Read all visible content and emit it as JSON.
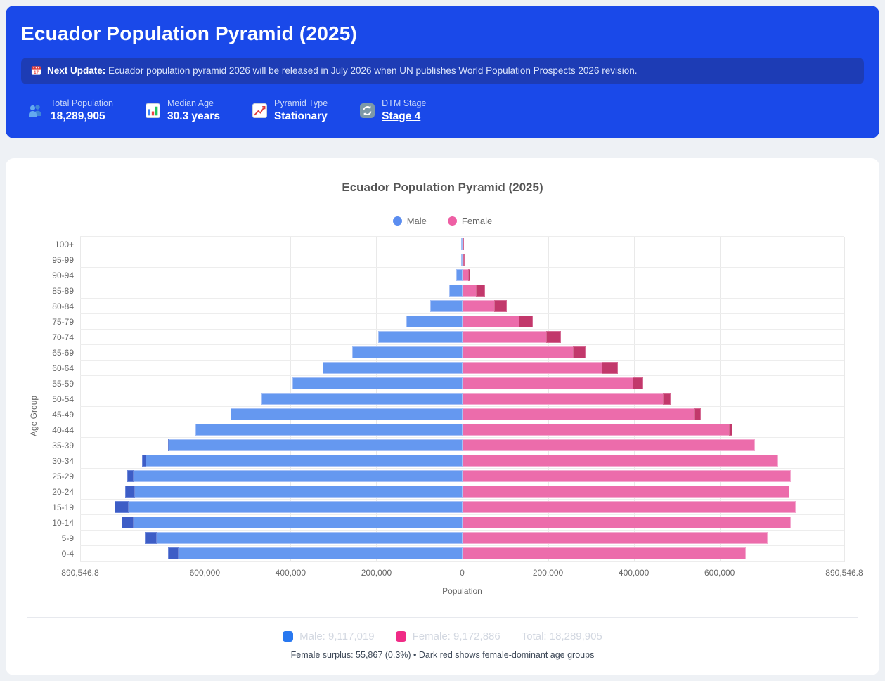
{
  "header": {
    "title": "Ecuador Population Pyramid (2025)",
    "banner": {
      "icon": "calendar-icon",
      "label": "Next Update:",
      "text": "Ecuador population pyramid 2026 will be released in July 2026 when UN publishes World Population Prospects 2026 revision."
    },
    "stats": [
      {
        "icon": "people-icon",
        "label": "Total Population",
        "value": "18,289,905"
      },
      {
        "icon": "bar-chart-icon",
        "label": "Median Age",
        "value": "30.3 years"
      },
      {
        "icon": "chart-increasing-icon",
        "label": "Pyramid Type",
        "value": "Stationary"
      },
      {
        "icon": "arrows-cycle-icon",
        "label": "DTM Stage",
        "value": "Stage 4"
      }
    ]
  },
  "chart": {
    "title": "Ecuador Population Pyramid (2025)",
    "legend": [
      {
        "label": "Male",
        "color": "#5b8df0"
      },
      {
        "label": "Female",
        "color": "#ee5fa4"
      }
    ],
    "ylabel": "Age Group",
    "xlabel": "Population"
  },
  "chart_data": {
    "type": "bar",
    "orientation": "horizontal population pyramid, male left / female right",
    "age_groups": [
      "100+",
      "95-99",
      "90-94",
      "85-89",
      "80-84",
      "75-79",
      "70-74",
      "65-69",
      "60-64",
      "55-59",
      "50-54",
      "45-49",
      "40-44",
      "35-39",
      "30-34",
      "25-29",
      "20-24",
      "15-19",
      "10-14",
      "5-9",
      "0-4"
    ],
    "series": [
      {
        "name": "Male",
        "values": [
          800,
          2700,
          13500,
          30100,
          74200,
          131000,
          195700,
          257000,
          324700,
          396500,
          467900,
          539400,
          621600,
          685000,
          745700,
          780500,
          785000,
          809588,
          793600,
          739400,
          685600
        ]
      },
      {
        "name": "Female",
        "values": [
          2000,
          5400,
          19400,
          52600,
          103700,
          164400,
          230100,
          288000,
          363200,
          421300,
          485800,
          555700,
          629200,
          681900,
          737200,
          765200,
          762500,
          777500,
          765200,
          712600,
          661500
        ]
      }
    ],
    "xlim": [
      -890546.8,
      890546.8
    ],
    "x_tick_values": [
      -890546.8,
      -600000,
      -400000,
      -200000,
      0,
      200000,
      400000,
      600000,
      890546.8
    ],
    "x_tick_labels": [
      "890,546.8",
      "600,000",
      "400,000",
      "200,000",
      "0",
      "200,000",
      "400,000",
      "600,000",
      "890,546.8"
    ],
    "grid": true,
    "legend_position": "top",
    "colors": {
      "male": "#6598f0",
      "male_surplus": "#3d5dc6",
      "female": "#ec6cab",
      "female_surplus": "#c2386b"
    },
    "surplus_rule": "dark blue tip = male surplus on male-dominant groups (0-4 to 35-39); dark red tip = female surplus on female-dominant groups (40-44 to 100+)",
    "totals": {
      "male": 9117019,
      "female": 9172886,
      "total": 18289905,
      "female_surplus": 55867,
      "female_surplus_pct": "0.3%"
    }
  },
  "summary": {
    "male_label": "Male: 9,117,019",
    "female_label": "Female: 9,172,886",
    "total_label": "Total: 18,289,905",
    "male_swatch_color": "#2878f0",
    "female_swatch_color": "#f02b86",
    "note": "Female surplus: 55,867 (0.3%) • Dark red shows female-dominant age groups"
  }
}
